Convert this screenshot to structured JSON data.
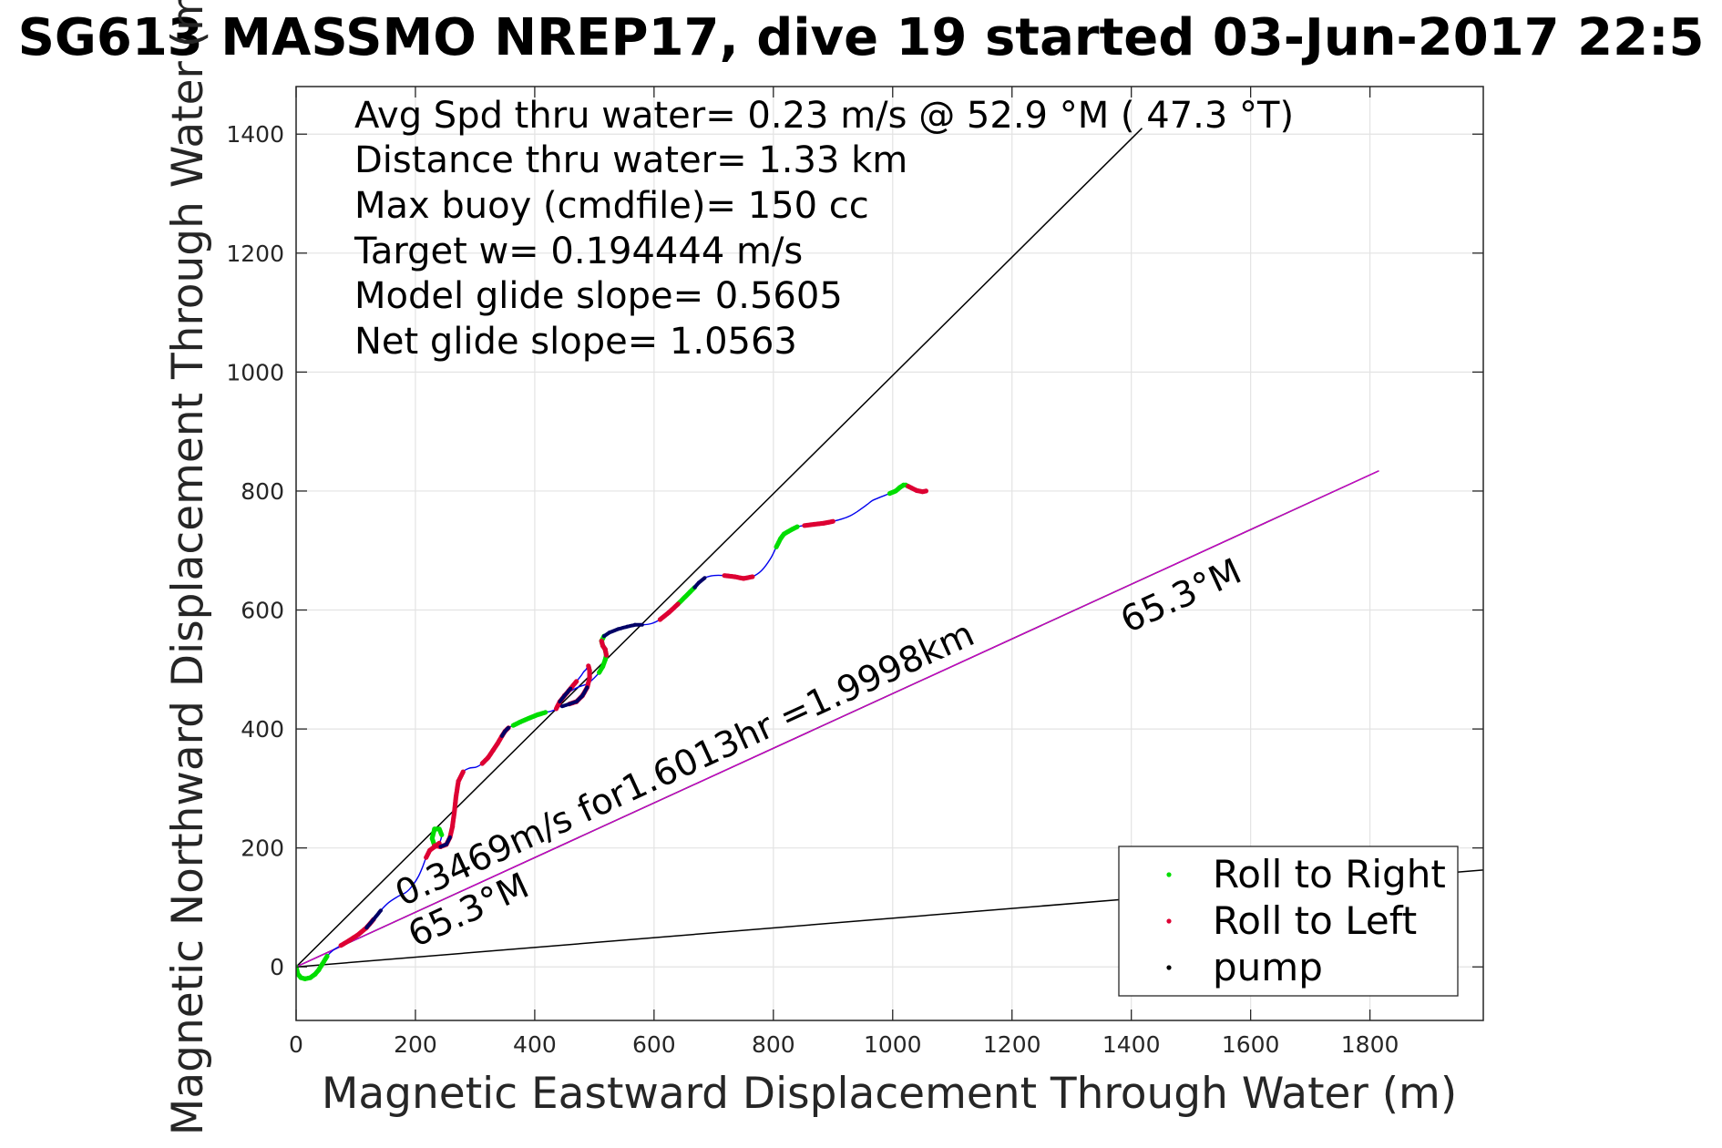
{
  "chart_data": {
    "type": "line",
    "title": "SG613 MASSMO NREP17, dive 19 started 03-Jun-2017 22:5",
    "xlabel": "Magnetic Eastward Displacement Through Water (m)",
    "ylabel": "Magnetic Northward Displacement Through Water (m)",
    "xlim": [
      0,
      1990
    ],
    "ylim": [
      -90,
      1480
    ],
    "xticks": [
      0,
      200,
      400,
      600,
      800,
      1000,
      1200,
      1400,
      1600,
      1800
    ],
    "yticks": [
      0,
      200,
      400,
      600,
      800,
      1000,
      1200,
      1400
    ],
    "grid": true,
    "stats": [
      "Avg Spd thru water=  0.23 m/s @  52.9 °M ( 47.3 °T)",
      "Distance thru water=  1.33 km",
      "Max buoy (cmdfile)= 150 cc",
      "Target w= 0.194444 m/s",
      "Model glide slope= 0.5605",
      "Net glide slope= 1.0563"
    ],
    "annotations": {
      "speed": "0.3469m/s for1.6013hr =1.9998km",
      "heading_far": "65.3°M",
      "heading_near": "65.3°M"
    },
    "reference_lines": [
      {
        "name": "",
        "color": "#000000",
        "x": [
          0,
          1418
        ],
        "y": [
          0,
          1410
        ]
      },
      {
        "name": "",
        "color": "#000000",
        "x": [
          0,
          1990
        ],
        "y": [
          0,
          163
        ]
      },
      {
        "name": "",
        "color": "#000000",
        "x": [
          0,
          1815
        ],
        "y": [
          0,
          834
        ]
      },
      {
        "name": "",
        "color": "#cc00cc",
        "x": [
          0,
          1815
        ],
        "y": [
          0,
          834
        ]
      }
    ],
    "track": {
      "color": "#0000ee",
      "x": [
        0,
        3,
        8,
        15,
        24,
        32,
        38,
        44,
        52,
        62,
        75,
        90,
        105,
        118,
        130,
        142,
        155,
        170,
        185,
        196,
        205,
        212,
        218,
        224,
        232,
        240,
        244,
        240,
        232,
        228,
        232,
        242,
        252,
        258,
        262,
        265,
        268,
        272,
        280,
        290,
        302,
        312,
        322,
        330,
        338,
        345,
        350,
        356,
        364,
        376,
        390,
        405,
        418,
        428,
        436,
        438,
        442,
        450,
        460,
        470,
        478,
        482,
        486,
        488,
        490,
        492,
        492,
        488,
        480,
        470,
        458,
        446,
        440,
        445,
        458,
        472,
        488,
        500,
        508,
        514,
        518,
        520,
        518,
        514,
        512,
        516,
        525,
        540,
        555,
        568,
        580,
        595,
        610,
        625,
        640,
        652,
        660,
        668,
        675,
        685,
        700,
        718,
        735,
        750,
        765,
        780,
        795,
        805,
        812,
        818,
        825,
        832,
        840,
        852,
        868,
        885,
        900,
        915,
        928,
        940,
        950,
        958,
        966,
        975,
        985,
        995,
        1005,
        1012,
        1018,
        1022,
        1026,
        1032,
        1040,
        1050,
        1056
      ],
      "y": [
        0,
        -12,
        -18,
        -20,
        -18,
        -12,
        -5,
        5,
        18,
        28,
        36,
        45,
        55,
        66,
        80,
        95,
        108,
        118,
        126,
        138,
        152,
        168,
        184,
        196,
        202,
        208,
        222,
        232,
        232,
        216,
        204,
        202,
        206,
        218,
        236,
        258,
        286,
        312,
        328,
        334,
        336,
        342,
        352,
        364,
        376,
        388,
        396,
        402,
        406,
        412,
        418,
        424,
        428,
        430,
        434,
        438,
        446,
        456,
        468,
        480,
        490,
        496,
        500,
        504,
        506,
        498,
        486,
        470,
        456,
        446,
        442,
        438,
        440,
        452,
        462,
        470,
        476,
        486,
        495,
        505,
        516,
        524,
        534,
        540,
        548,
        556,
        562,
        568,
        572,
        575,
        575,
        577,
        584,
        596,
        610,
        622,
        630,
        638,
        646,
        654,
        658,
        658,
        656,
        653,
        656,
        666,
        686,
        706,
        720,
        728,
        732,
        736,
        740,
        742,
        744,
        746,
        749,
        753,
        758,
        765,
        772,
        778,
        784,
        788,
        792,
        796,
        800,
        806,
        810,
        810,
        808,
        805,
        801,
        799,
        800
      ]
    },
    "markers": {
      "right": {
        "name": "Roll to Right",
        "color": "#00dd00",
        "segments": [
          [
            0,
            8
          ],
          [
            26,
            30
          ],
          [
            48,
            52
          ],
          [
            78,
            85
          ],
          [
            94,
            97
          ],
          [
            107,
            112
          ],
          [
            125,
            130
          ]
        ]
      },
      "left": {
        "name": "Roll to Left",
        "color": "#dd0033",
        "segments": [
          [
            10,
            14
          ],
          [
            22,
            25
          ],
          [
            30,
            38
          ],
          [
            41,
            47
          ],
          [
            54,
            59
          ],
          [
            64,
            70
          ],
          [
            81,
            84
          ],
          [
            92,
            94
          ],
          [
            101,
            104
          ],
          [
            113,
            116
          ],
          [
            130,
            135
          ]
        ]
      },
      "pump": {
        "name": "pump",
        "color": "#000066",
        "segments": [
          [
            13,
            15
          ],
          [
            31,
            33
          ],
          [
            45,
            47
          ],
          [
            56,
            58
          ],
          [
            67,
            71
          ],
          [
            85,
            90
          ],
          [
            97,
            99
          ]
        ]
      }
    },
    "legend": {
      "placement": "bottom-right",
      "entries": [
        "Roll to Right",
        "Roll to Left",
        "pump"
      ],
      "colors": [
        "#00dd00",
        "#dd0033",
        "#000000"
      ]
    }
  }
}
